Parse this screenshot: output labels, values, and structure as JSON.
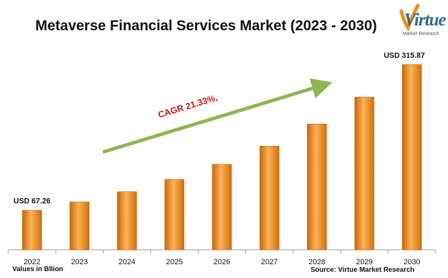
{
  "title": "Metaverse Financial Services Market (2023 - 2030)",
  "logo": {
    "main": "Virtue",
    "sub": "Market Research"
  },
  "footnote_left": "Values in Bllion",
  "footnote_right": "Source: Virtue Market Research",
  "colors": {
    "bar": "#ef8a12",
    "bar_light": "#fbb35a",
    "bar_dark": "#c96806",
    "arrow": "#8db650",
    "cagr": "#c0191c"
  },
  "chart_data": {
    "type": "bar",
    "title": "Metaverse Financial Services Market (2023 - 2030)",
    "categories": [
      "2022",
      "2023",
      "2024",
      "2025",
      "2026",
      "2027",
      "2028",
      "2029",
      "2030"
    ],
    "values": [
      67.26,
      81.6,
      99.0,
      120.1,
      145.7,
      176.8,
      214.5,
      260.3,
      315.87
    ],
    "data_labels": [
      {
        "index": 0,
        "text": "USD 67.26"
      },
      {
        "index": 8,
        "text": "USD 315.87"
      }
    ],
    "annotation": "CAGR 21.33%,",
    "ylim": [
      0,
      345
    ],
    "xlabel": "",
    "ylabel": "",
    "grid": false,
    "legend": false
  }
}
